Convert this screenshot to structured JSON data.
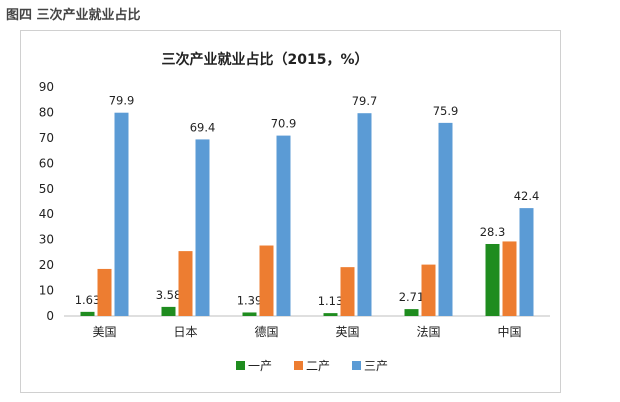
{
  "figure_caption": "图四 三次产业就业占比",
  "chart_data": {
    "type": "bar",
    "title": "三次产业就业占比（2015，%）",
    "categories": [
      "美国",
      "日本",
      "德国",
      "英国",
      "法国",
      "中国"
    ],
    "series": [
      {
        "name": "一产",
        "values": [
          1.63,
          3.58,
          1.39,
          1.13,
          2.71,
          28.3
        ],
        "color": "#1f8c1f",
        "labels": [
          "1.63",
          "3.58",
          "1.39",
          "1.13",
          "2.71",
          "28.3"
        ]
      },
      {
        "name": "二产",
        "values": [
          18.5,
          25.5,
          27.7,
          19.2,
          20.2,
          29.3
        ],
        "color": "#ed7d31",
        "labels": [
          "",
          "",
          "",
          "",
          "",
          ""
        ]
      },
      {
        "name": "三产",
        "values": [
          79.9,
          69.4,
          70.9,
          79.7,
          75.9,
          42.4
        ],
        "color": "#5b9bd5",
        "labels": [
          "79.9",
          "69.4",
          "70.9",
          "79.7",
          "75.9",
          "42.4"
        ]
      }
    ],
    "yticks": [
      "0",
      "10",
      "20",
      "30",
      "40",
      "50",
      "60",
      "70",
      "80",
      "90"
    ],
    "ylim": [
      0,
      90
    ],
    "grid": false,
    "legend": "bottom"
  }
}
